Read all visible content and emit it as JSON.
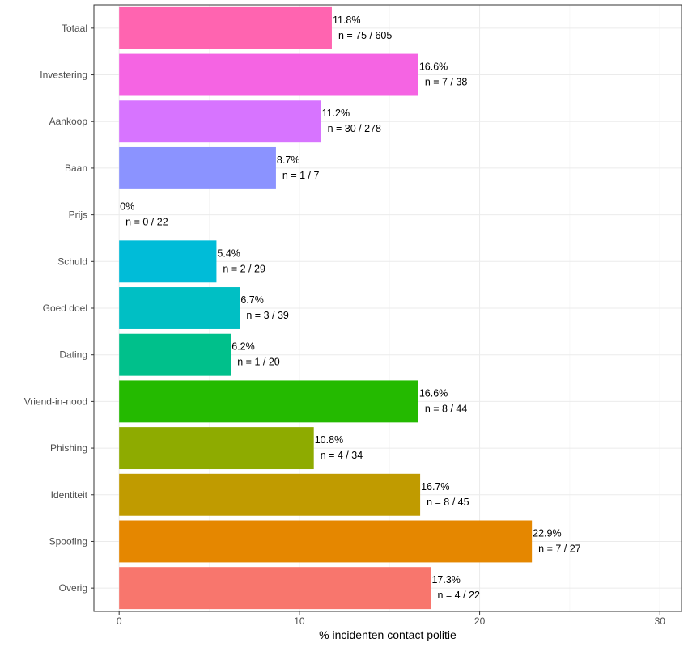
{
  "chart_data": {
    "type": "bar",
    "orientation": "horizontal",
    "xlabel": "% incidenten contact politie",
    "ylabel": "",
    "xlim": [
      -1.4,
      31.2
    ],
    "xticks": [
      0,
      10,
      20,
      30
    ],
    "grid": true,
    "legend": "none",
    "categories": [
      "Totaal",
      "Investering",
      "Aankoop",
      "Baan",
      "Prijs",
      "Schuld",
      "Goed doel",
      "Dating",
      "Vriend-in-nood",
      "Phishing",
      "Identiteit",
      "Spoofing",
      "Overig"
    ],
    "values": [
      11.8,
      16.6,
      11.2,
      8.7,
      0,
      5.4,
      6.7,
      6.2,
      16.6,
      10.8,
      16.7,
      22.9,
      17.3
    ],
    "value_labels": [
      "11.8%",
      "16.6%",
      "11.2%",
      "8.7%",
      "0%",
      "5.4%",
      "6.7%",
      "6.2%",
      "16.6%",
      "10.8%",
      "16.7%",
      "22.9%",
      "17.3%"
    ],
    "n_labels": [
      "n = 75 / 605",
      "n = 7 / 38",
      "n = 30 / 278",
      "n = 1 / 7",
      "n = 0 / 22",
      "n = 2 / 29",
      "n = 3 / 39",
      "n = 1 / 20",
      "n = 8 / 44",
      "n = 4 / 34",
      "n = 8 / 45",
      "n = 7 / 27",
      "n = 4 / 22"
    ],
    "colors": [
      "#FF64B0",
      "#F564E3",
      "#D774FF",
      "#8B93FF",
      "#00B0F6",
      "#00BCD8",
      "#00BFC4",
      "#00C08B",
      "#24BA00",
      "#8EAB00",
      "#C09B00",
      "#E58700",
      "#F8766D"
    ]
  }
}
